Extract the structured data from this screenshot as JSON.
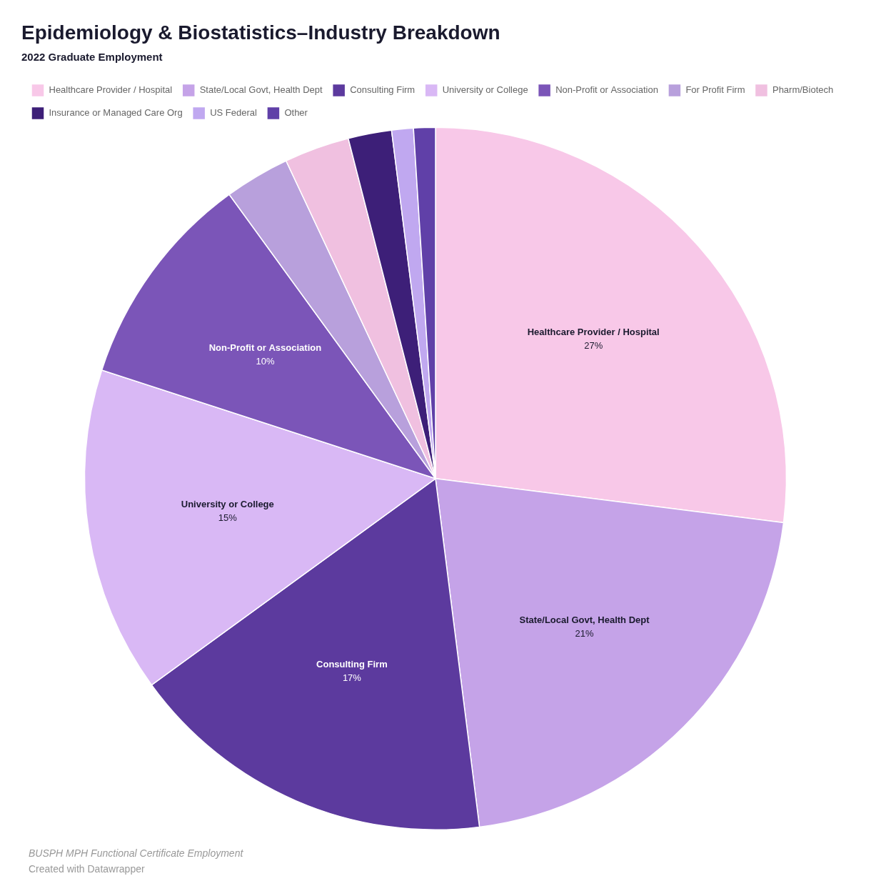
{
  "chart_data": {
    "type": "pie",
    "title": "Epidemiology & Biostatistics–Industry Breakdown",
    "subtitle": "2022 Graduate Employment",
    "categories": [
      "Healthcare Provider / Hospital",
      "State/Local Govt, Health Dept",
      "Consulting Firm",
      "University or College",
      "Non-Profit or Association",
      "For Profit Firm",
      "Pharm/Biotech",
      "Insurance or Managed Care Org",
      "US Federal",
      "Other"
    ],
    "values": [
      27,
      21,
      17,
      15,
      10,
      3,
      3,
      2,
      1,
      1
    ],
    "colors": [
      "#f8c8e8",
      "#c5a3e8",
      "#5c3a9e",
      "#d9b8f5",
      "#7b55b8",
      "#b8a0dc",
      "#f0c0e0",
      "#3d1f78",
      "#c0a8f0",
      "#6040a8"
    ],
    "data_labels": true,
    "value_labels": [
      "27%",
      "21%",
      "17%",
      "15%",
      "10%",
      null,
      null,
      null,
      null,
      null
    ],
    "legend": "top",
    "annotations": [
      "BUSPH MPH Functional Certificate Employment",
      "Created with Datawrapper"
    ]
  }
}
